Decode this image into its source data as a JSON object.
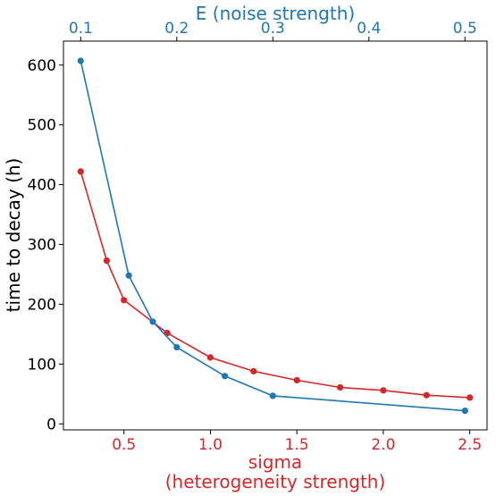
{
  "chart_data": {
    "type": "line",
    "ylabel": "time to decay (h)",
    "xlabel_bottom": [
      "sigma",
      "(heterogeneity strength)"
    ],
    "xlabel_top": "E (noise strength)",
    "colors": {
      "sigma": "#d62728",
      "noise": "#1f77b4",
      "axis": "#000000"
    },
    "bottom_axis": {
      "range": [
        0.15,
        2.6
      ],
      "ticks": [
        0.5,
        1.0,
        1.5,
        2.0,
        2.5
      ],
      "tick_labels": [
        "0.5",
        "1.0",
        "1.5",
        "2.0",
        "2.5"
      ]
    },
    "top_axis": {
      "range": [
        0.082,
        0.523
      ],
      "ticks": [
        0.1,
        0.2,
        0.3,
        0.4,
        0.5
      ],
      "tick_labels": [
        "0.1",
        "0.2",
        "0.3",
        "0.4",
        "0.5"
      ]
    },
    "y_axis": {
      "range": [
        -10,
        640
      ],
      "ticks": [
        0,
        100,
        200,
        300,
        400,
        500,
        600
      ],
      "tick_labels": [
        "0",
        "100",
        "200",
        "300",
        "400",
        "500",
        "600"
      ]
    },
    "series": [
      {
        "axis": "bottom",
        "color_key": "sigma",
        "x": [
          0.25,
          0.4,
          0.5,
          0.75,
          1.0,
          1.25,
          1.5,
          1.75,
          2.0,
          2.25,
          2.5
        ],
        "y": [
          422,
          273,
          207,
          152,
          111,
          88,
          73,
          61,
          56,
          48,
          44
        ]
      },
      {
        "axis": "top",
        "color_key": "noise",
        "x": [
          0.1,
          0.15,
          0.175,
          0.2,
          0.25,
          0.3,
          0.5
        ],
        "y": [
          607,
          248,
          171,
          128,
          80,
          47,
          22
        ]
      }
    ]
  }
}
